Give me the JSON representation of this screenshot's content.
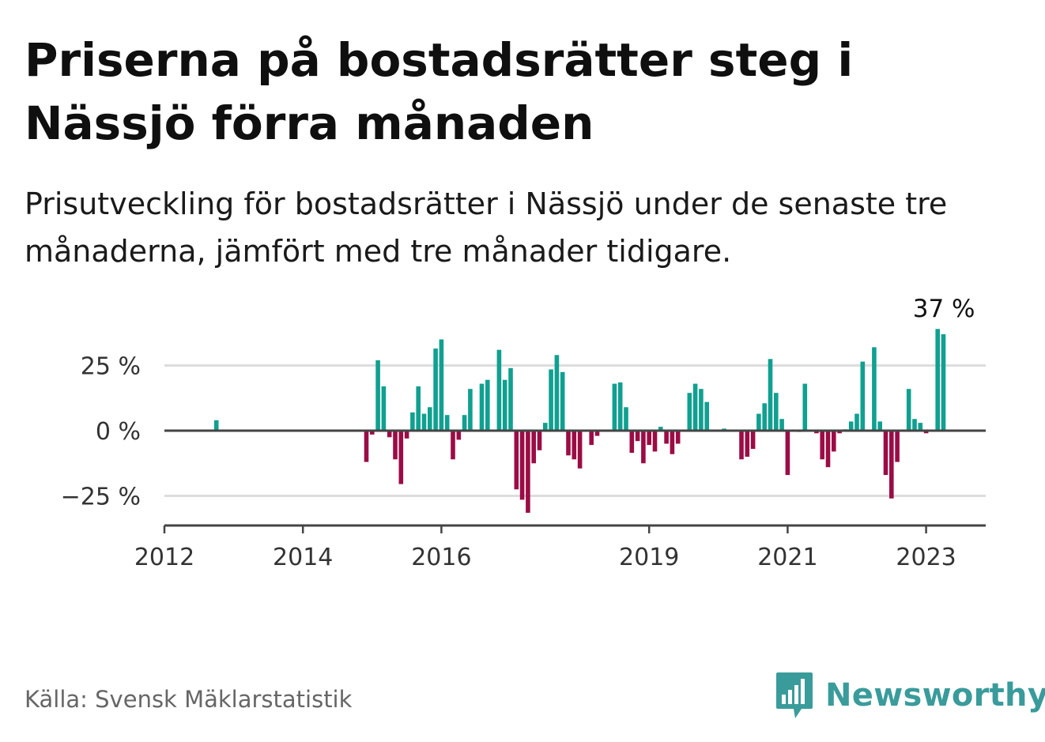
{
  "header": {
    "title": "Priserna på bostadsrätter steg i Nässjö förra månaden",
    "subtitle": "Prisutveckling för bostadsrätter i Nässjö under de senaste tre månaderna, jämfört med tre månader tidigare."
  },
  "footer": {
    "source": "Källa: Svensk Mäklarstatistik",
    "brand": "Newsworthy"
  },
  "colors": {
    "positive": "#10a090",
    "negative": "#9b0c45",
    "baseline": "#444444",
    "grid": "#dddddd",
    "brand": "#3a9b9b"
  },
  "chart_data": {
    "type": "bar",
    "title": "",
    "xlabel": "",
    "ylabel": "",
    "unit": "%",
    "grid": true,
    "ylim": [
      -36,
      40
    ],
    "y_ticks": [
      {
        "value": 25,
        "label": "25 %"
      },
      {
        "value": 0,
        "label": "0 %"
      },
      {
        "value": -25,
        "label": "−25 %"
      }
    ],
    "x_ticks": [
      {
        "year": 2012,
        "label": "2012"
      },
      {
        "year": 2014,
        "label": "2014"
      },
      {
        "year": 2016,
        "label": "2016"
      },
      {
        "year": 2019,
        "label": "2019"
      },
      {
        "year": 2021,
        "label": "2021"
      },
      {
        "year": 2023,
        "label": "2023"
      }
    ],
    "annotation": {
      "date": "2023-04",
      "label": "37 %"
    },
    "series": [
      {
        "values": [
          {
            "date": "2012-10",
            "value": 4
          },
          {
            "date": "2014-12",
            "value": -12
          },
          {
            "date": "2015-01",
            "value": -1.5
          },
          {
            "date": "2015-02",
            "value": 27
          },
          {
            "date": "2015-03",
            "value": 17
          },
          {
            "date": "2015-04",
            "value": -2.5
          },
          {
            "date": "2015-05",
            "value": -11
          },
          {
            "date": "2015-06",
            "value": -20.5
          },
          {
            "date": "2015-07",
            "value": -3
          },
          {
            "date": "2015-08",
            "value": 7
          },
          {
            "date": "2015-09",
            "value": 17
          },
          {
            "date": "2015-10",
            "value": 6.5
          },
          {
            "date": "2015-11",
            "value": 9
          },
          {
            "date": "2015-12",
            "value": 31.5
          },
          {
            "date": "2016-01",
            "value": 35
          },
          {
            "date": "2016-02",
            "value": 6
          },
          {
            "date": "2016-03",
            "value": -11
          },
          {
            "date": "2016-04",
            "value": -3.5
          },
          {
            "date": "2016-05",
            "value": 6
          },
          {
            "date": "2016-06",
            "value": 16
          },
          {
            "date": "2016-08",
            "value": 18
          },
          {
            "date": "2016-09",
            "value": 19.5
          },
          {
            "date": "2016-11",
            "value": 31
          },
          {
            "date": "2016-12",
            "value": 19.5
          },
          {
            "date": "2017-01",
            "value": 24
          },
          {
            "date": "2017-02",
            "value": -22.5
          },
          {
            "date": "2017-03",
            "value": -26.5
          },
          {
            "date": "2017-04",
            "value": -31.5
          },
          {
            "date": "2017-05",
            "value": -12.5
          },
          {
            "date": "2017-06",
            "value": -7.5
          },
          {
            "date": "2017-07",
            "value": 3
          },
          {
            "date": "2017-08",
            "value": 23.5
          },
          {
            "date": "2017-09",
            "value": 29
          },
          {
            "date": "2017-10",
            "value": 22.5
          },
          {
            "date": "2017-11",
            "value": -9.5
          },
          {
            "date": "2017-12",
            "value": -11
          },
          {
            "date": "2018-01",
            "value": -14.5
          },
          {
            "date": "2018-03",
            "value": -5.5
          },
          {
            "date": "2018-04",
            "value": -2
          },
          {
            "date": "2018-07",
            "value": 18
          },
          {
            "date": "2018-08",
            "value": 18.5
          },
          {
            "date": "2018-09",
            "value": 9
          },
          {
            "date": "2018-10",
            "value": -8.5
          },
          {
            "date": "2018-11",
            "value": -4
          },
          {
            "date": "2018-12",
            "value": -12.5
          },
          {
            "date": "2019-01",
            "value": -5.5
          },
          {
            "date": "2019-02",
            "value": -8
          },
          {
            "date": "2019-03",
            "value": 1.5
          },
          {
            "date": "2019-04",
            "value": -5
          },
          {
            "date": "2019-05",
            "value": -9
          },
          {
            "date": "2019-06",
            "value": -5
          },
          {
            "date": "2019-08",
            "value": 14.5
          },
          {
            "date": "2019-09",
            "value": 18
          },
          {
            "date": "2019-10",
            "value": 16
          },
          {
            "date": "2019-11",
            "value": 11
          },
          {
            "date": "2020-02",
            "value": 0.8
          },
          {
            "date": "2020-05",
            "value": -11
          },
          {
            "date": "2020-06",
            "value": -10
          },
          {
            "date": "2020-07",
            "value": -7
          },
          {
            "date": "2020-08",
            "value": 6.5
          },
          {
            "date": "2020-09",
            "value": 10.5
          },
          {
            "date": "2020-10",
            "value": 27.5
          },
          {
            "date": "2020-11",
            "value": 14.5
          },
          {
            "date": "2020-12",
            "value": 4.5
          },
          {
            "date": "2021-01",
            "value": -17
          },
          {
            "date": "2021-03",
            "value": -0.5
          },
          {
            "date": "2021-04",
            "value": 18
          },
          {
            "date": "2021-06",
            "value": -1
          },
          {
            "date": "2021-07",
            "value": -11
          },
          {
            "date": "2021-08",
            "value": -14
          },
          {
            "date": "2021-09",
            "value": -8
          },
          {
            "date": "2021-10",
            "value": -1
          },
          {
            "date": "2021-11",
            "value": 0.5
          },
          {
            "date": "2021-12",
            "value": 3.5
          },
          {
            "date": "2022-01",
            "value": 6.5
          },
          {
            "date": "2022-02",
            "value": 26.5
          },
          {
            "date": "2022-04",
            "value": 32
          },
          {
            "date": "2022-05",
            "value": 3.5
          },
          {
            "date": "2022-06",
            "value": -17
          },
          {
            "date": "2022-07",
            "value": -26
          },
          {
            "date": "2022-08",
            "value": -12
          },
          {
            "date": "2022-10",
            "value": 16
          },
          {
            "date": "2022-11",
            "value": 4.5
          },
          {
            "date": "2022-12",
            "value": 3
          },
          {
            "date": "2023-01",
            "value": -1
          },
          {
            "date": "2023-03",
            "value": 39
          },
          {
            "date": "2023-04",
            "value": 37
          }
        ]
      }
    ]
  }
}
